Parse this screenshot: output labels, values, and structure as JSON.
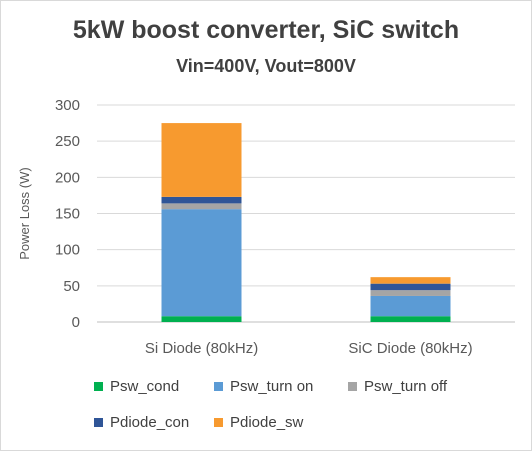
{
  "chart_data": {
    "type": "bar",
    "stacked": true,
    "title": "5kW boost converter, SiC switch",
    "subtitle": "Vin=400V, Vout=800V",
    "xlabel": "",
    "ylabel": "Power Loss (W)",
    "ylim": [
      0,
      300
    ],
    "yticks": [
      0,
      50,
      100,
      150,
      200,
      250,
      300
    ],
    "grid": true,
    "legend_position": "bottom",
    "categories": [
      "Si Diode (80kHz)",
      "SiC Diode (80kHz)"
    ],
    "series": [
      {
        "name": "Psw_cond",
        "color": "#00b050",
        "values": [
          8,
          8
        ]
      },
      {
        "name": "Psw_turn on",
        "color": "#5b9bd5",
        "values": [
          148,
          28
        ]
      },
      {
        "name": "Psw_turn off",
        "color": "#a5a5a5",
        "values": [
          8,
          8
        ]
      },
      {
        "name": "Pdiode_con",
        "color": "#2f5597",
        "values": [
          9,
          9
        ]
      },
      {
        "name": "Pdiode_sw",
        "color": "#f79a2f",
        "values": [
          102,
          9
        ]
      }
    ]
  }
}
